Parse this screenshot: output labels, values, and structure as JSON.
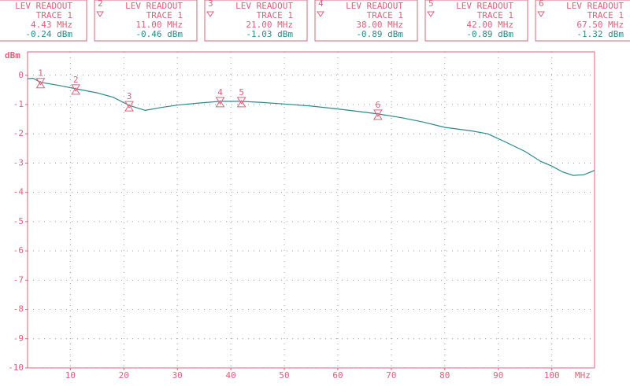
{
  "chart_data": {
    "type": "line",
    "y_unit": "dBm",
    "x_unit": "MHz",
    "x": [
      2,
      3,
      4.43,
      8,
      11,
      15,
      18,
      21,
      24,
      27,
      30,
      34,
      38,
      42,
      46,
      50,
      55,
      60,
      64,
      67.5,
      72,
      76,
      80,
      85,
      88,
      91,
      95,
      98,
      100,
      102,
      104,
      106,
      108
    ],
    "values": [
      -0.12,
      -0.1,
      -0.24,
      -0.35,
      -0.46,
      -0.6,
      -0.75,
      -1.03,
      -1.2,
      -1.1,
      -1.02,
      -0.95,
      -0.89,
      -0.89,
      -0.93,
      -0.98,
      -1.05,
      -1.15,
      -1.24,
      -1.32,
      -1.45,
      -1.6,
      -1.78,
      -1.9,
      -2.0,
      -2.25,
      -2.6,
      -2.95,
      -3.1,
      -3.3,
      -3.42,
      -3.4,
      -3.25
    ],
    "color": "#2a8a8a",
    "xlim": [
      2,
      108
    ],
    "ylim": [
      -10,
      0.8
    ],
    "xticks": [
      10,
      20,
      30,
      40,
      50,
      60,
      70,
      80,
      90,
      100
    ],
    "yticks": [
      0,
      -1,
      -2,
      -3,
      -4,
      -5,
      -6,
      -7,
      -8,
      -9,
      -10
    ],
    "grid": true,
    "markers": [
      {
        "number": "1",
        "title": "LEV READOUT",
        "trace": "TRACE 1",
        "x": 4.43,
        "x_label": "4.43 MHz",
        "y": -0.24,
        "y_label": "-0.24 dBm"
      },
      {
        "number": "2",
        "title": "LEV READOUT",
        "trace": "TRACE 1",
        "x": 11,
        "x_label": "11.00 MHz",
        "y": -0.46,
        "y_label": "-0.46 dBm"
      },
      {
        "number": "3",
        "title": "LEV READOUT",
        "trace": "TRACE 1",
        "x": 21,
        "x_label": "21.00 MHz",
        "y": -1.03,
        "y_label": "-1.03 dBm"
      },
      {
        "number": "4",
        "title": "LEV READOUT",
        "trace": "TRACE 1",
        "x": 38,
        "x_label": "38.00 MHz",
        "y": -0.89,
        "y_label": "-0.89 dBm"
      },
      {
        "number": "5",
        "title": "LEV READOUT",
        "trace": "TRACE 1",
        "x": 42,
        "x_label": "42.00 MHz",
        "y": -0.89,
        "y_label": "-0.89 dBm"
      },
      {
        "number": "6",
        "title": "LEV READOUT",
        "trace": "TRACE 1",
        "x": 67.5,
        "x_label": "67.50 MHz",
        "y": -1.32,
        "y_label": "-1.32 dBm"
      }
    ]
  }
}
